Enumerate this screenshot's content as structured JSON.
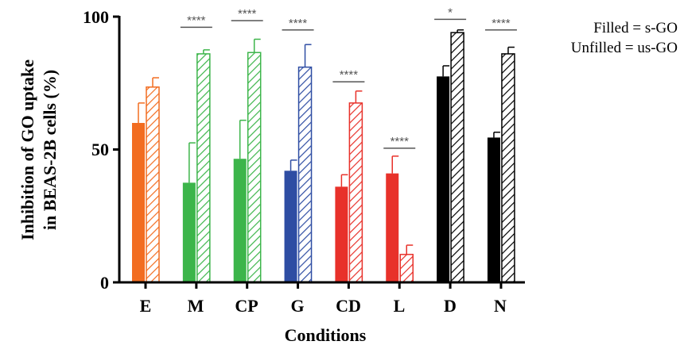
{
  "chart_data": {
    "type": "bar",
    "ylabel_line1": "Inhibition of GO uptake",
    "ylabel_line2": "in BEAS-2B cells (%)",
    "xlabel": "Conditions",
    "ylim": [
      0,
      100
    ],
    "yticks": [
      "0",
      "50",
      "100"
    ],
    "legend": [
      "Filled = s-GO",
      "Unfilled = us-GO"
    ],
    "legend_placement": "top-right",
    "categories": [
      "E",
      "M",
      "CP",
      "G",
      "CD",
      "L",
      "D",
      "N"
    ],
    "colors": [
      "#f26d21",
      "#3cb54a",
      "#3cb54a",
      "#2e4da3",
      "#e8312a",
      "#e8312a",
      "#000000",
      "#000000"
    ],
    "series": [
      {
        "name": "s-GO",
        "fill": "solid",
        "values": [
          60,
          37.5,
          46.5,
          42,
          36,
          41,
          77.5,
          54.5
        ],
        "errors": [
          7.5,
          15,
          14.5,
          4,
          4.5,
          6.5,
          4,
          2
        ]
      },
      {
        "name": "us-GO",
        "fill": "hatched",
        "values": [
          73.5,
          86,
          86.5,
          81,
          67.5,
          10.5,
          94,
          86
        ],
        "errors": [
          3.5,
          1.5,
          5,
          8.5,
          4.5,
          3.5,
          1,
          2.5
        ]
      }
    ],
    "significance": [
      "",
      "****",
      "****",
      "****",
      "****",
      "****",
      "*",
      "****"
    ],
    "significance_level": [
      null,
      96,
      98.5,
      95,
      75.5,
      50.5,
      99,
      95
    ]
  }
}
